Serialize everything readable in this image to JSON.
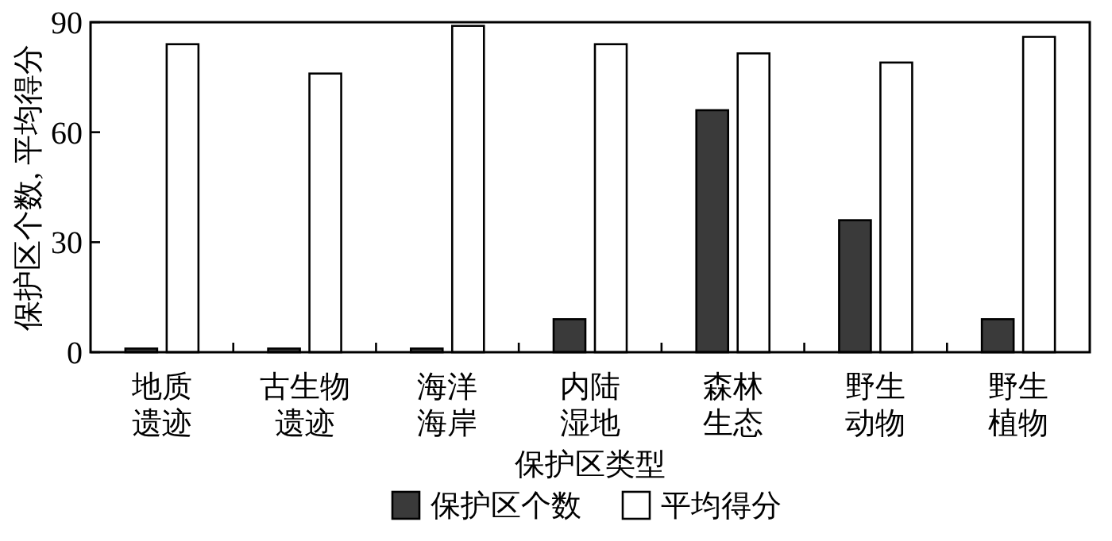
{
  "chart_data": {
    "type": "bar",
    "xlabel": "保护区类型",
    "ylabel": "保护区个数, 平均得分",
    "categories": [
      "地质遗迹",
      "古生物遗迹",
      "海洋海岸",
      "内陆湿地",
      "森林生态",
      "野生动物",
      "野生植物"
    ],
    "series": [
      {
        "name": "保护区个数",
        "color": "#3a3a3a",
        "values": [
          1,
          1,
          1,
          9,
          66,
          36,
          9
        ]
      },
      {
        "name": "平均得分",
        "color": "#ffffff",
        "values": [
          84,
          76,
          89,
          84,
          81.5,
          79,
          86
        ]
      }
    ],
    "ylim": [
      0,
      90
    ],
    "yticks": [
      0,
      30,
      60,
      90
    ],
    "grid": false,
    "legend": "bottom"
  }
}
